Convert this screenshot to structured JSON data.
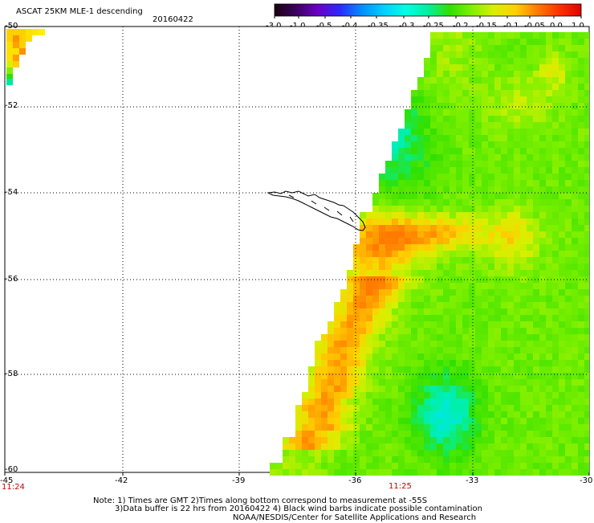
{
  "header": {
    "title": "ASCAT 25KM MLE-1 descending",
    "date": "20160422"
  },
  "colorbar": {
    "labels": [
      "-3.0",
      "-1.0",
      "-0.5",
      "-0.4",
      "-0.35",
      "-0.3",
      "-0.25",
      "-0.2",
      "-0.15",
      "-0.1",
      "-0.05",
      "0.0",
      "1.0"
    ],
    "colors": [
      "#1a0010",
      "#3c0060",
      "#6a00c8",
      "#2a2aff",
      "#0090ff",
      "#00d0ff",
      "#00ffe0",
      "#00f0a0",
      "#30e000",
      "#80f000",
      "#d8f000",
      "#ffd000",
      "#ff7a00",
      "#ff3000",
      "#e00000"
    ]
  },
  "map": {
    "lat_labels": [
      "-50",
      "-52",
      "-54",
      "-56",
      "-58",
      "-60"
    ],
    "lon_labels": [
      "-45",
      "-42",
      "-39",
      "-36",
      "-33",
      "-30"
    ],
    "time_labels": [
      "11:24",
      "11:25"
    ],
    "grid": true,
    "feature": "South Georgia island coastline"
  },
  "notes": {
    "line1": "Note: 1) Times are GMT 2)Times along bottom correspond to measurement at -55S",
    "line2": "3)Data buffer is 22 hrs from 20160422 4) Black wind barbs indicate possible contamination",
    "line3": "NOAA/NESDIS/Center for Satellite Applications and Research"
  }
}
